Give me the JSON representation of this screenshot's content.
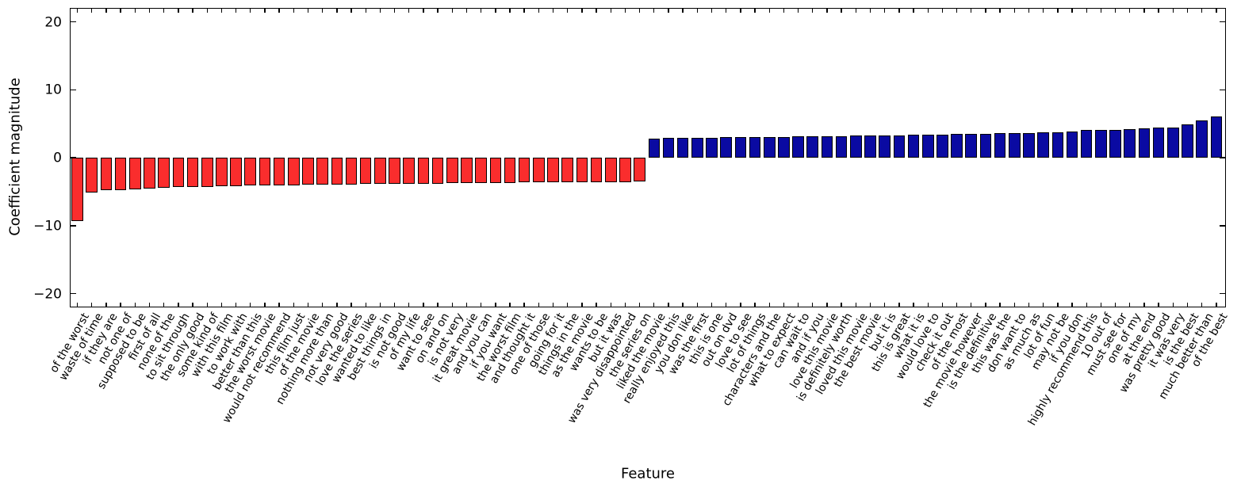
{
  "figure": {
    "ylabel": "Coefficient magnitude",
    "xlabel": "Feature"
  },
  "chart_data": {
    "type": "bar",
    "title": "",
    "xlabel": "Feature",
    "ylabel": "Coefficient magnitude",
    "ylim": [
      -22.1,
      22.2
    ],
    "yticks": [
      20,
      10,
      0,
      -10,
      -20
    ],
    "ytick_labels": [
      "20",
      "10",
      "0",
      "−10",
      "−20"
    ],
    "grid": false,
    "legend_position": "none",
    "negative_color": "#fa2d2d",
    "positive_color": "#0a0aa2",
    "bar_edge_color": "#000000",
    "categories": [
      "of the worst",
      "waste of time",
      "if they are",
      "not one of",
      "supposed to be",
      "first of all",
      "none of the",
      "to sit through",
      "the only good",
      "some kind of",
      "with this film",
      "to work with",
      "better than this",
      "the worst movie",
      "would not recommend",
      "this film just",
      "of the movie",
      "nothing more than",
      "not very good",
      "love the series",
      "wanted to like",
      "best things in",
      "is not good",
      "of my life",
      "want to see",
      "on and on",
      "is not very",
      "it great movie",
      "and you can",
      "if you want",
      "the worst film",
      "and thought it",
      "one of those",
      "going for it",
      "things in the",
      "as the movie",
      "wants to be",
      "but it was",
      "was very disappointed",
      "the series on",
      "liked the movie",
      "really enjoyed this",
      "you don like",
      "was the first",
      "this is one",
      "out on dvd",
      "love to see",
      "lot of things",
      "characters and the",
      "what to expect",
      "can wait to",
      "and if you",
      "love this movie",
      "is definitely worth",
      "loved this movie",
      "the best movie",
      "but it is",
      "this is great",
      "what it is",
      "would love to",
      "check it out",
      "of the most",
      "the movie however",
      "is the definitive",
      "this was the",
      "don want to",
      "as much as",
      "lot of fun",
      "may not be",
      "if you don",
      "highly recommend this",
      "10 out of",
      "must see for",
      "one of my",
      "at the end",
      "was pretty good",
      "it was very",
      "is the best",
      "much better than",
      "of the best"
    ],
    "values": [
      -9.3,
      -5.1,
      -4.8,
      -4.72,
      -4.6,
      -4.5,
      -4.42,
      -4.35,
      -4.3,
      -4.25,
      -4.2,
      -4.16,
      -4.12,
      -4.08,
      -4.05,
      -4.02,
      -3.99,
      -3.96,
      -3.93,
      -3.9,
      -3.88,
      -3.86,
      -3.84,
      -3.82,
      -3.8,
      -3.78,
      -3.76,
      -3.74,
      -3.72,
      -3.7,
      -3.68,
      -3.66,
      -3.64,
      -3.62,
      -3.6,
      -3.58,
      -3.57,
      -3.56,
      -3.55,
      -3.54,
      2.85,
      2.88,
      2.91,
      2.94,
      2.96,
      2.99,
      3.01,
      3.04,
      3.06,
      3.09,
      3.11,
      3.14,
      3.17,
      3.2,
      3.23,
      3.26,
      3.29,
      3.32,
      3.35,
      3.38,
      3.42,
      3.46,
      3.5,
      3.54,
      3.58,
      3.62,
      3.67,
      3.72,
      3.78,
      3.85,
      4.05,
      4.1,
      4.1,
      4.2,
      4.3,
      4.4,
      4.45,
      4.95,
      5.5,
      6.05
    ]
  }
}
